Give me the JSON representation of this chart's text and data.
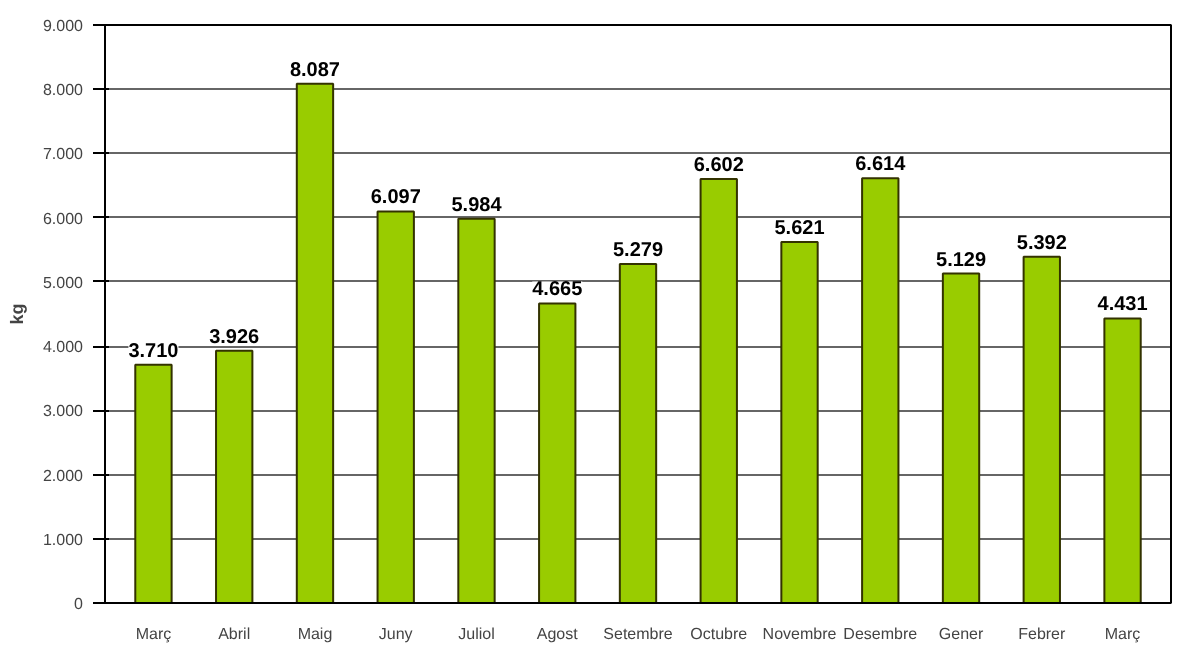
{
  "chart_data": {
    "type": "bar",
    "ylabel": "kg",
    "categories": [
      "Març",
      "Abril",
      "Maig",
      "Juny",
      "Juliol",
      "Agost",
      "Setembre",
      "Octubre",
      "Novembre",
      "Desembre",
      "Gener",
      "Febrer",
      "Març"
    ],
    "values": [
      3710,
      3926,
      8087,
      6097,
      5984,
      4665,
      5279,
      6602,
      5621,
      6614,
      5129,
      5392,
      4431
    ],
    "value_labels": [
      "3.710",
      "3.926",
      "8.087",
      "6.097",
      "5.984",
      "4.665",
      "5.279",
      "6.602",
      "5.621",
      "6.614",
      "5.129",
      "5.392",
      "4.431"
    ],
    "color": "#99cc00",
    "ylim": [
      0,
      9000
    ],
    "yticks": [
      {
        "value": 0,
        "label": "0"
      },
      {
        "value": 1000,
        "label": "1.000"
      },
      {
        "value": 2000,
        "label": "2.000"
      },
      {
        "value": 3000,
        "label": "3.000"
      },
      {
        "value": 4000,
        "label": "4.000"
      },
      {
        "value": 5000,
        "label": "5.000"
      },
      {
        "value": 6000,
        "label": "6.000"
      },
      {
        "value": 7000,
        "label": "7.000"
      },
      {
        "value": 8000,
        "label": "8.000"
      },
      {
        "value": 9000,
        "label": "9.000"
      }
    ],
    "grid": "y"
  }
}
